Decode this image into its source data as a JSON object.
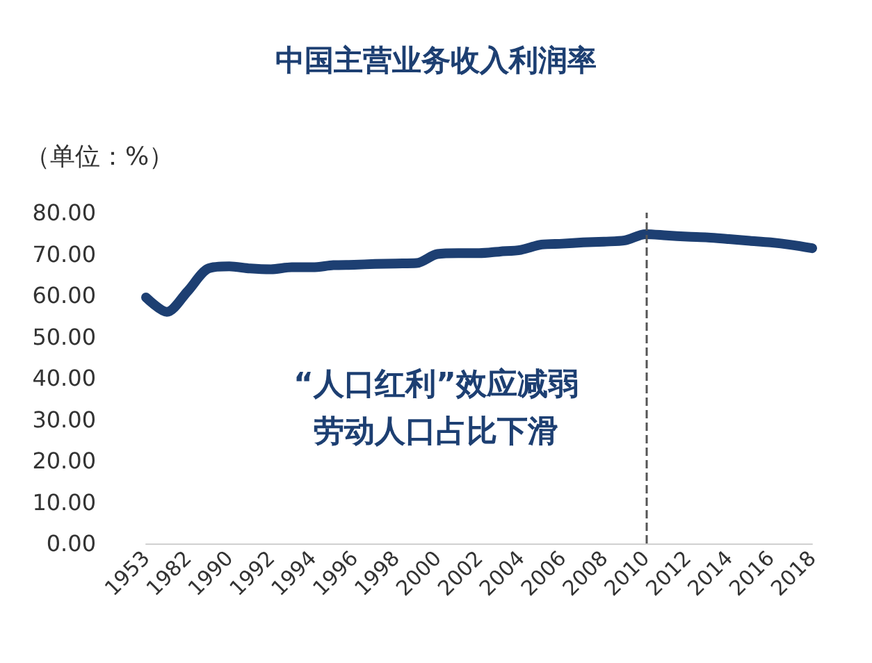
{
  "chart_data": {
    "type": "line",
    "title": "中国主营业务收入利润率",
    "ylabel": "（单位：%）",
    "categories": [
      "1953",
      null,
      "1982",
      null,
      "1990",
      null,
      "1992",
      null,
      "1994",
      null,
      "1996",
      null,
      "1998",
      null,
      "2000",
      null,
      "2002",
      null,
      "2004",
      null,
      "2006",
      null,
      "2008",
      null,
      "2010",
      null,
      "2012",
      null,
      "2014",
      null,
      "2016",
      null,
      "2018"
    ],
    "series": [
      {
        "color": "#1d3f72",
        "values": [
          59.5,
          56,
          61,
          66.5,
          67,
          66.5,
          66.3,
          66.8,
          66.8,
          67.3,
          67.4,
          67.6,
          67.7,
          67.8,
          70,
          70.2,
          70.2,
          70.6,
          71,
          72.3,
          72.5,
          72.8,
          73,
          73.3,
          74.8,
          74.5,
          74.2,
          74,
          73.6,
          73.2,
          72.8,
          72.2,
          71.4
        ]
      }
    ],
    "ylim": [
      0,
      80
    ],
    "yticks": [
      {
        "value": 0,
        "label": "0.00"
      },
      {
        "value": 10,
        "label": "10.00"
      },
      {
        "value": 20,
        "label": "20.00"
      },
      {
        "value": 30,
        "label": "30.00"
      },
      {
        "value": 40,
        "label": "40.00"
      },
      {
        "value": 50,
        "label": "50.00"
      },
      {
        "value": 60,
        "label": "60.00"
      },
      {
        "value": 70,
        "label": "70.00"
      },
      {
        "value": 80,
        "label": "80.00"
      }
    ],
    "ref_lines": [
      {
        "axis": "x",
        "value": "2010",
        "color": "#555555",
        "line_style": "dashed"
      }
    ],
    "annotations": [
      "“人口红利”效应减弱",
      "劳动人口占比下滑"
    ],
    "grid": false,
    "line_style": "solid"
  }
}
